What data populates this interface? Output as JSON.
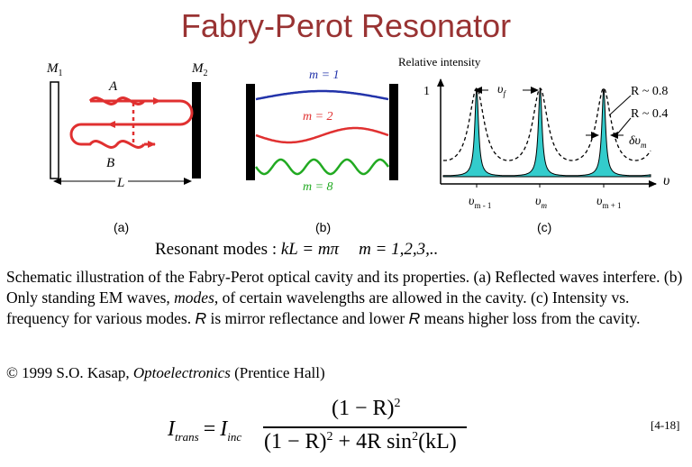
{
  "title": "Fabry-Perot Resonator",
  "panel_a": {
    "mirror1": "M",
    "mirror1_sub": "1",
    "mirror2": "M",
    "mirror2_sub": "2",
    "point_a": "A",
    "point_b": "B",
    "length": "L",
    "label": "(a)"
  },
  "panel_b": {
    "modes": [
      {
        "label": "m = 1",
        "color": "#2233aa",
        "half_waves": 1
      },
      {
        "label": "m = 2",
        "color": "#e03030",
        "half_waves": 2
      },
      {
        "label": "m = 8",
        "color": "#22aa22",
        "half_waves": 8
      }
    ],
    "label": "(b)"
  },
  "panel_c": {
    "ylabel": "Relative intensity",
    "y_tick": "1",
    "x_axis_symbol": "υ",
    "delta_nu_f": "υ",
    "delta_nu_f_sub": "f",
    "r_high": "R ~ 0.8",
    "r_low": "R ~ 0.4",
    "delta_nu_m": "δυ",
    "delta_nu_m_sub": "m",
    "peak_labels": [
      {
        "sym": "υ",
        "sub": "m - 1"
      },
      {
        "sym": "υ",
        "sub": "m"
      },
      {
        "sym": "υ",
        "sub": "m + 1"
      }
    ],
    "label": "(c)"
  },
  "resonant_modes": {
    "prefix": "Resonant modes : ",
    "equation": "kL = mπ",
    "values": "m = 1,2,3,.."
  },
  "caption": {
    "part1": "Schematic illustration of the Fabry-Perot optical cavity and its properties. (a) Reflected waves interfere. (b) Only standing EM waves, ",
    "modes_word": "modes",
    "part2": ", of certain wavelengths are allowed in the cavity. (c) Intensity vs. frequency for various modes. ",
    "r1": "R",
    "part3": " is mirror reflectance and lower ",
    "r2": "R",
    "part4": " means higher loss from the cavity."
  },
  "copyright": {
    "prefix": "© 1999 S.O. Kasap, ",
    "book": "Optoelectronics",
    "suffix": " (Prentice Hall)"
  },
  "equation": {
    "lhs": "I",
    "lhs_sub": "trans",
    "eq": "=",
    "i_inc": "I",
    "i_inc_sub": "inc",
    "numerator": "(1 − R)",
    "numerator_exp": "2",
    "den_part1": "(1 − R)",
    "den_exp1": "2",
    "den_part2": " + 4R sin",
    "den_exp2": "2",
    "den_part3": "(kL)",
    "number": "[4-18]"
  },
  "colors": {
    "title": "#993333",
    "arrow_red": "#e03030",
    "peak_fill": "#33cccc"
  }
}
